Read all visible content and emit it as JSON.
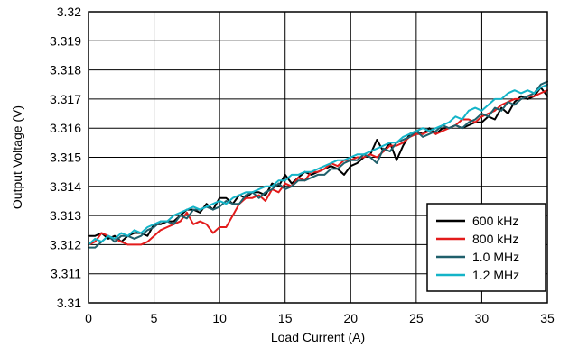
{
  "chart_data": {
    "type": "line",
    "xlabel": "Load Current (A)",
    "ylabel": "Output Voltage (V)",
    "xlim": [
      0,
      35
    ],
    "ylim": [
      3.31,
      3.32
    ],
    "xticks": [
      0,
      5,
      10,
      15,
      20,
      25,
      30,
      35
    ],
    "yticks": [
      3.31,
      3.311,
      3.312,
      3.313,
      3.314,
      3.315,
      3.316,
      3.317,
      3.318,
      3.319,
      3.32
    ],
    "xtick_labels": [
      "0",
      "5",
      "10",
      "15",
      "20",
      "25",
      "30",
      "35"
    ],
    "ytick_labels": [
      "3.31",
      "3.311",
      "3.312",
      "3.313",
      "3.314",
      "3.315",
      "3.316",
      "3.317",
      "3.318",
      "3.319",
      "3.32"
    ],
    "grid": true,
    "legend_position": "bottom-right",
    "series": [
      {
        "name": "600 kHz",
        "color": "#000000",
        "x": [
          0,
          0.5,
          1,
          1.5,
          2,
          2.5,
          3,
          3.5,
          4,
          4.5,
          5,
          5.5,
          6,
          6.5,
          7,
          7.5,
          8,
          8.5,
          9,
          9.5,
          10,
          10.5,
          11,
          11.5,
          12,
          12.5,
          13,
          13.5,
          14,
          14.5,
          15,
          15.5,
          16,
          16.5,
          17,
          17.5,
          18,
          18.5,
          19,
          19.5,
          20,
          20.5,
          21,
          21.5,
          22,
          22.5,
          23,
          23.5,
          24,
          24.5,
          25,
          25.5,
          26,
          26.5,
          27,
          27.5,
          28,
          28.5,
          29,
          29.5,
          30,
          30.5,
          31,
          31.5,
          32,
          32.5,
          33,
          33.5,
          34,
          34.5,
          35
        ],
        "y": [
          3.3123,
          3.3123,
          3.3124,
          3.3122,
          3.3123,
          3.3121,
          3.3123,
          3.3124,
          3.3124,
          3.3123,
          3.3127,
          3.3127,
          3.3128,
          3.3128,
          3.313,
          3.3132,
          3.3132,
          3.3131,
          3.3134,
          3.3132,
          3.3136,
          3.3136,
          3.3134,
          3.3137,
          3.3136,
          3.3138,
          3.3138,
          3.3137,
          3.3141,
          3.314,
          3.3144,
          3.3141,
          3.3143,
          3.3145,
          3.3144,
          3.3145,
          3.3146,
          3.3147,
          3.3146,
          3.3144,
          3.3147,
          3.3148,
          3.315,
          3.3151,
          3.3156,
          3.3152,
          3.3155,
          3.3149,
          3.3154,
          3.3158,
          3.3159,
          3.3158,
          3.316,
          3.3158,
          3.316,
          3.316,
          3.3161,
          3.316,
          3.3161,
          3.3162,
          3.3162,
          3.3164,
          3.3163,
          3.3167,
          3.3165,
          3.3169,
          3.3171,
          3.317,
          3.3171,
          3.3174,
          3.3171
        ]
      },
      {
        "name": "800 kHz",
        "color": "#e31b1b",
        "x": [
          0,
          0.5,
          1,
          1.5,
          2,
          2.5,
          3,
          3.5,
          4,
          4.5,
          5,
          5.5,
          6,
          6.5,
          7,
          7.5,
          8,
          8.5,
          9,
          9.5,
          10,
          10.5,
          11,
          11.5,
          12,
          12.5,
          13,
          13.5,
          14,
          14.5,
          15,
          15.5,
          16,
          16.5,
          17,
          17.5,
          18,
          18.5,
          19,
          19.5,
          20,
          20.5,
          21,
          21.5,
          22,
          22.5,
          23,
          23.5,
          24,
          24.5,
          25,
          25.5,
          26,
          26.5,
          27,
          27.5,
          28,
          28.5,
          29,
          29.5,
          30,
          30.5,
          31,
          31.5,
          32,
          32.5,
          33,
          33.5,
          34,
          34.5,
          35
        ],
        "y": [
          3.312,
          3.3121,
          3.3124,
          3.3123,
          3.3122,
          3.3121,
          3.312,
          3.312,
          3.312,
          3.3121,
          3.3123,
          3.3125,
          3.3126,
          3.3127,
          3.3128,
          3.3131,
          3.3127,
          3.3128,
          3.3127,
          3.3124,
          3.3126,
          3.3126,
          3.313,
          3.3134,
          3.3136,
          3.3136,
          3.3137,
          3.3135,
          3.3139,
          3.3138,
          3.3141,
          3.314,
          3.3143,
          3.3142,
          3.3145,
          3.3145,
          3.3146,
          3.3148,
          3.3147,
          3.3149,
          3.3149,
          3.315,
          3.315,
          3.3151,
          3.315,
          3.3152,
          3.3154,
          3.3154,
          3.3155,
          3.3157,
          3.3158,
          3.3158,
          3.3159,
          3.3158,
          3.3159,
          3.316,
          3.3161,
          3.3163,
          3.3163,
          3.3162,
          3.3164,
          3.3165,
          3.3166,
          3.3168,
          3.3169,
          3.317,
          3.317,
          3.3171,
          3.3171,
          3.3172,
          3.3173
        ]
      },
      {
        "name": "1.0 MHz",
        "color": "#1f5f6b",
        "x": [
          0,
          0.5,
          1,
          1.5,
          2,
          2.5,
          3,
          3.5,
          4,
          4.5,
          5,
          5.5,
          6,
          6.5,
          7,
          7.5,
          8,
          8.5,
          9,
          9.5,
          10,
          10.5,
          11,
          11.5,
          12,
          12.5,
          13,
          13.5,
          14,
          14.5,
          15,
          15.5,
          16,
          16.5,
          17,
          17.5,
          18,
          18.5,
          19,
          19.5,
          20,
          20.5,
          21,
          21.5,
          22,
          22.5,
          23,
          23.5,
          24,
          24.5,
          25,
          25.5,
          26,
          26.5,
          27,
          27.5,
          28,
          28.5,
          29,
          29.5,
          30,
          30.5,
          31,
          31.5,
          32,
          32.5,
          33,
          33.5,
          34,
          34.5,
          35
        ],
        "y": [
          3.3119,
          3.3119,
          3.3121,
          3.3123,
          3.3121,
          3.3123,
          3.3123,
          3.3122,
          3.3123,
          3.3125,
          3.3126,
          3.3128,
          3.3128,
          3.3127,
          3.313,
          3.3129,
          3.3132,
          3.3132,
          3.3133,
          3.3132,
          3.3133,
          3.3135,
          3.3134,
          3.3134,
          3.3137,
          3.3138,
          3.3136,
          3.3138,
          3.3139,
          3.3141,
          3.3139,
          3.314,
          3.3142,
          3.3142,
          3.3143,
          3.3144,
          3.3144,
          3.3146,
          3.3146,
          3.3148,
          3.3149,
          3.3149,
          3.3151,
          3.315,
          3.3148,
          3.3153,
          3.3152,
          3.3155,
          3.3156,
          3.3157,
          3.3159,
          3.3157,
          3.3158,
          3.3159,
          3.3161,
          3.316,
          3.3161,
          3.316,
          3.3162,
          3.3163,
          3.3165,
          3.3164,
          3.3167,
          3.3166,
          3.3169,
          3.3168,
          3.317,
          3.3171,
          3.3172,
          3.3175,
          3.3176
        ]
      },
      {
        "name": "1.2 MHz",
        "color": "#14b4c8",
        "x": [
          0,
          0.5,
          1,
          1.5,
          2,
          2.5,
          3,
          3.5,
          4,
          4.5,
          5,
          5.5,
          6,
          6.5,
          7,
          7.5,
          8,
          8.5,
          9,
          9.5,
          10,
          10.5,
          11,
          11.5,
          12,
          12.5,
          13,
          13.5,
          14,
          14.5,
          15,
          15.5,
          16,
          16.5,
          17,
          17.5,
          18,
          18.5,
          19,
          19.5,
          20,
          20.5,
          21,
          21.5,
          22,
          22.5,
          23,
          23.5,
          24,
          24.5,
          25,
          25.5,
          26,
          26.5,
          27,
          27.5,
          28,
          28.5,
          29,
          29.5,
          30,
          30.5,
          31,
          31.5,
          32,
          32.5,
          33,
          33.5,
          34,
          34.5,
          35
        ],
        "y": [
          3.312,
          3.3122,
          3.3121,
          3.3123,
          3.3122,
          3.3124,
          3.3123,
          3.3125,
          3.3124,
          3.3126,
          3.3127,
          3.3128,
          3.3128,
          3.313,
          3.3131,
          3.3132,
          3.3133,
          3.3132,
          3.3133,
          3.3134,
          3.3135,
          3.3134,
          3.3136,
          3.3137,
          3.3138,
          3.3138,
          3.3139,
          3.314,
          3.314,
          3.3142,
          3.3142,
          3.3144,
          3.3144,
          3.3145,
          3.3145,
          3.3146,
          3.3147,
          3.3148,
          3.3149,
          3.3149,
          3.315,
          3.3151,
          3.3151,
          3.3152,
          3.3153,
          3.3154,
          3.3155,
          3.3155,
          3.3157,
          3.3158,
          3.3159,
          3.316,
          3.3159,
          3.316,
          3.3161,
          3.3162,
          3.3164,
          3.3163,
          3.3166,
          3.3167,
          3.3166,
          3.3168,
          3.317,
          3.317,
          3.3172,
          3.3173,
          3.3172,
          3.3173,
          3.3172,
          3.3174,
          3.3175
        ]
      }
    ]
  }
}
